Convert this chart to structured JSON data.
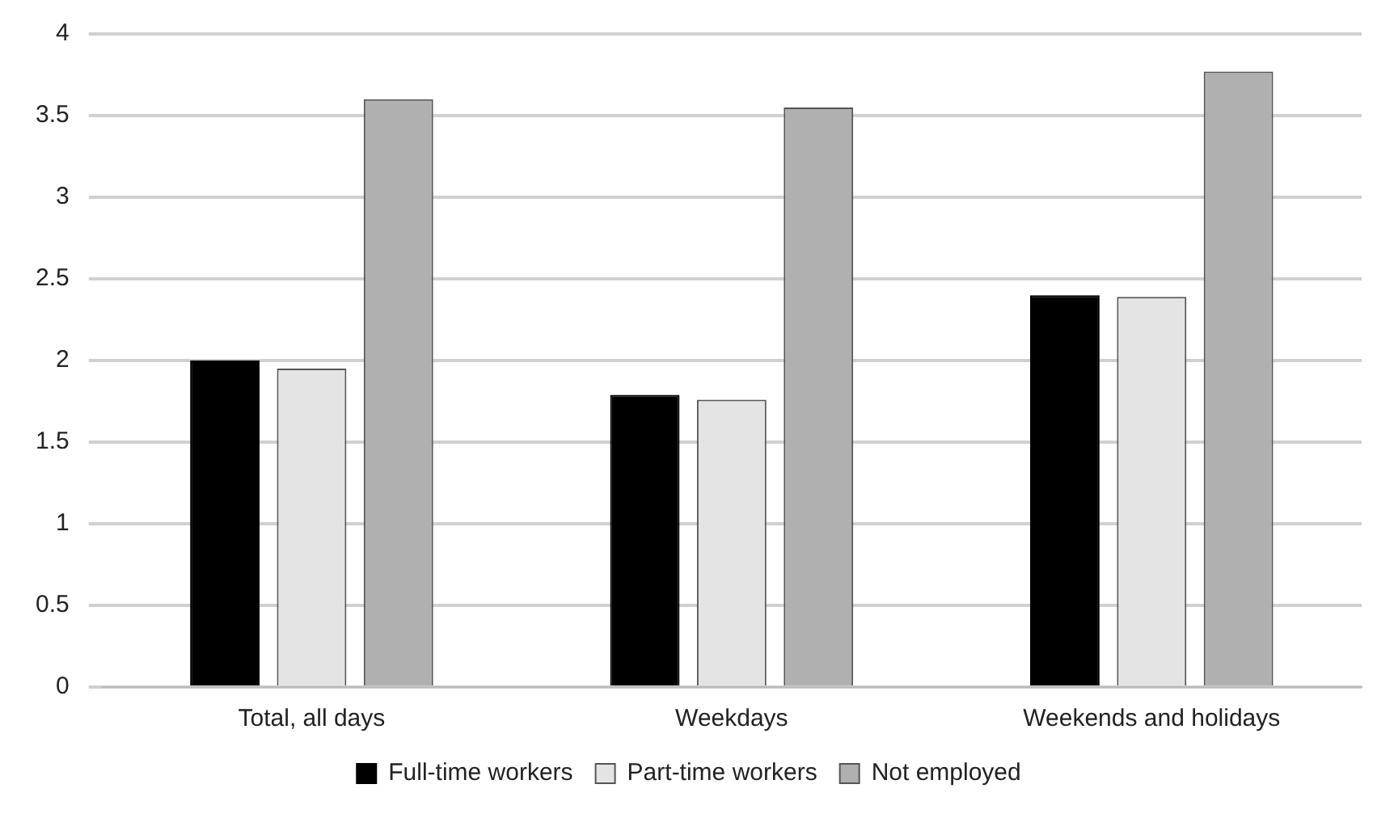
{
  "chart_data": {
    "type": "bar",
    "categories": [
      "Total, all days",
      "Weekdays",
      "Weekends and holidays"
    ],
    "series": [
      {
        "name": "Full-time workers",
        "color": "#000000",
        "values": [
          2.0,
          1.79,
          2.4
        ]
      },
      {
        "name": "Part-time workers",
        "color": "#e4e4e4",
        "values": [
          1.95,
          1.76,
          2.39
        ]
      },
      {
        "name": "Not employed",
        "color": "#b0b0b0",
        "values": [
          3.6,
          3.55,
          3.77
        ]
      }
    ],
    "ylim": [
      0,
      4
    ],
    "yticks": [
      0,
      0.5,
      1,
      1.5,
      2,
      2.5,
      3,
      3.5,
      4
    ],
    "grid": "y",
    "legend": "bottom"
  }
}
